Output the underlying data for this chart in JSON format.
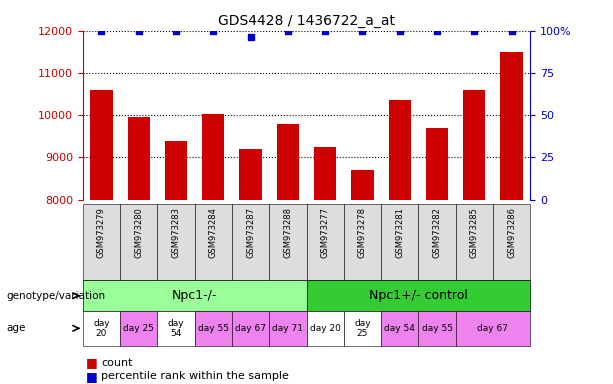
{
  "title": "GDS4428 / 1436722_a_at",
  "samples": [
    "GSM973279",
    "GSM973280",
    "GSM973283",
    "GSM973284",
    "GSM973287",
    "GSM973288",
    "GSM973277",
    "GSM973278",
    "GSM973281",
    "GSM973282",
    "GSM973285",
    "GSM973286"
  ],
  "counts": [
    10600,
    9950,
    9400,
    10020,
    9200,
    9800,
    9250,
    8700,
    10350,
    9700,
    10600,
    11500
  ],
  "percentile_ranks": [
    100,
    100,
    100,
    100,
    96,
    100,
    100,
    100,
    100,
    100,
    100,
    100
  ],
  "ylim_left": [
    8000,
    12000
  ],
  "ylim_right": [
    0,
    100
  ],
  "yticks_left": [
    8000,
    9000,
    10000,
    11000,
    12000
  ],
  "yticks_right": [
    0,
    25,
    50,
    75,
    100
  ],
  "bar_color": "#cc0000",
  "dot_color": "#0000cc",
  "bar_width": 0.6,
  "group1_label": "Npc1-/-",
  "group2_label": "Npc1+/- control",
  "group1_color": "#99ff99",
  "group2_color": "#33cc33",
  "age_data": [
    [
      0,
      0,
      "day\n20",
      "#ffffff"
    ],
    [
      1,
      1,
      "day 25",
      "#ee82ee"
    ],
    [
      2,
      2,
      "day\n54",
      "#ffffff"
    ],
    [
      3,
      3,
      "day 55",
      "#ee82ee"
    ],
    [
      4,
      4,
      "day 67",
      "#ee82ee"
    ],
    [
      5,
      5,
      "day 71",
      "#ee82ee"
    ],
    [
      6,
      6,
      "day 20",
      "#ffffff"
    ],
    [
      7,
      7,
      "day\n25",
      "#ffffff"
    ],
    [
      8,
      8,
      "day 54",
      "#ee82ee"
    ],
    [
      9,
      9,
      "day 55",
      "#ee82ee"
    ],
    [
      10,
      11,
      "day 67",
      "#ee82ee"
    ]
  ],
  "legend_count_color": "#cc0000",
  "legend_rank_color": "#0000cc",
  "tick_color_left": "#cc0000",
  "tick_color_right": "#0000cc",
  "sample_box_color": "#dddddd"
}
